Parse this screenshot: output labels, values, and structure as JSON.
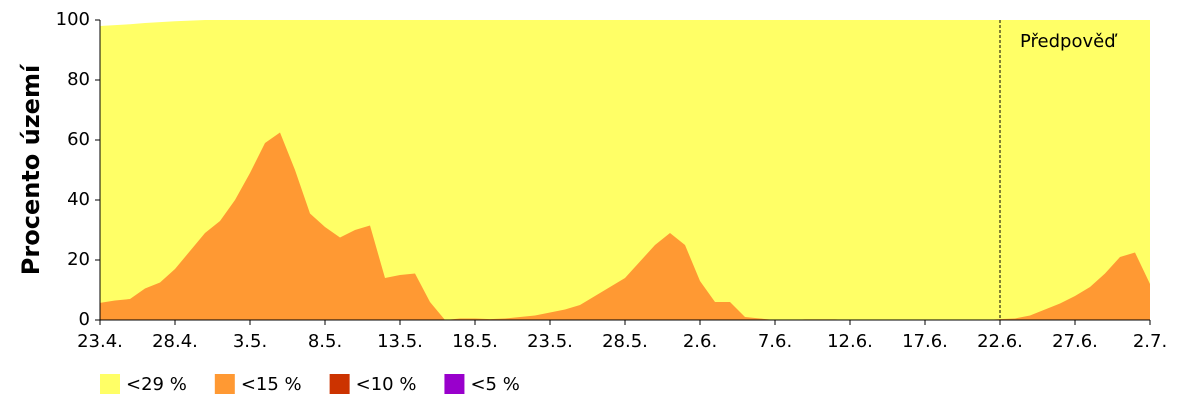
{
  "chart_data": {
    "type": "area",
    "y_label": "Procento území",
    "annotation": {
      "text": "Předpověď",
      "x": "22.6."
    },
    "categories": [
      "23.4.",
      null,
      null,
      null,
      null,
      "28.4.",
      null,
      null,
      null,
      null,
      "3.5.",
      null,
      null,
      null,
      null,
      "8.5.",
      null,
      null,
      null,
      null,
      "13.5.",
      null,
      null,
      null,
      null,
      "18.5.",
      null,
      null,
      null,
      null,
      "23.5.",
      null,
      null,
      null,
      null,
      "28.5.",
      null,
      null,
      null,
      null,
      "2.6.",
      null,
      null,
      null,
      null,
      "7.6.",
      null,
      null,
      null,
      null,
      "12.6.",
      null,
      null,
      null,
      null,
      "17.6.",
      null,
      null,
      null,
      null,
      "22.6.",
      null,
      null,
      null,
      null,
      "27.6.",
      null,
      null,
      null,
      null,
      "2.7."
    ],
    "series": [
      {
        "name": "<29 %",
        "color": "#ffff66",
        "values": [
          98,
          98.3,
          98.6,
          99,
          99.3,
          99.6,
          99.8,
          100,
          100,
          100,
          100,
          100,
          100,
          100,
          100,
          100,
          100,
          100,
          100,
          100,
          100,
          100,
          100,
          100,
          100,
          100,
          100,
          100,
          100,
          100,
          100,
          100,
          100,
          100,
          100,
          100,
          100,
          100,
          100,
          100,
          100,
          100,
          100,
          100,
          100,
          100,
          100,
          100,
          100,
          100,
          100,
          100,
          100,
          100,
          100,
          100,
          100,
          100,
          100,
          100,
          100,
          100,
          100,
          100,
          100,
          100,
          100,
          100,
          100,
          100,
          100
        ]
      },
      {
        "name": "<15 %",
        "color": "#ff9933",
        "values": [
          5.7,
          6.5,
          7,
          10.5,
          12.5,
          17,
          23,
          29,
          33,
          40,
          49,
          59,
          62.5,
          50,
          35.5,
          31,
          27.5,
          30,
          31.5,
          14,
          15,
          15.5,
          6,
          0,
          0.5,
          0.5,
          0.3,
          0.5,
          1,
          1.5,
          2.5,
          3.5,
          5,
          8,
          11,
          14,
          19.5,
          25,
          29,
          25,
          13,
          6,
          6,
          1,
          0.5,
          0,
          0,
          0.2,
          0.2,
          0.2,
          0,
          0,
          0,
          0,
          0,
          0,
          0,
          0,
          0,
          0,
          0.3,
          0.5,
          1.5,
          3.5,
          5.5,
          8,
          11,
          15.5,
          21,
          22.5,
          12
        ]
      },
      {
        "name": "<10 %",
        "color": "#cc3300",
        "values": [
          0,
          0,
          0,
          0,
          0,
          0,
          0,
          0,
          0,
          0,
          0,
          0,
          0,
          0,
          0,
          0,
          0,
          0,
          0,
          0,
          0,
          0,
          0,
          0,
          0,
          0,
          0,
          0,
          0,
          0,
          0,
          0,
          0,
          0,
          0,
          0,
          0,
          0,
          0,
          0,
          0,
          0,
          0,
          0,
          0,
          0,
          0,
          0,
          0,
          0,
          0,
          0,
          0,
          0,
          0,
          0,
          0,
          0,
          0,
          0,
          0,
          0,
          0,
          0,
          0,
          0,
          0,
          0,
          0,
          0,
          0
        ]
      },
      {
        "name": "<5 %",
        "color": "#9900cc",
        "values": [
          0,
          0,
          0,
          0,
          0,
          0,
          0,
          0,
          0,
          0,
          0,
          0,
          0,
          0,
          0,
          0,
          0,
          0,
          0,
          0,
          0,
          0,
          0,
          0,
          0,
          0,
          0,
          0,
          0,
          0,
          0,
          0,
          0,
          0,
          0,
          0,
          0,
          0,
          0,
          0,
          0,
          0,
          0,
          0,
          0,
          0,
          0,
          0,
          0,
          0,
          0,
          0,
          0,
          0,
          0,
          0,
          0,
          0,
          0,
          0,
          0,
          0,
          0,
          0,
          0,
          0,
          0,
          0,
          0,
          0,
          0
        ]
      }
    ],
    "ylim": [
      0,
      100
    ],
    "yticks": [
      0,
      20,
      40,
      60,
      80,
      100
    ]
  }
}
